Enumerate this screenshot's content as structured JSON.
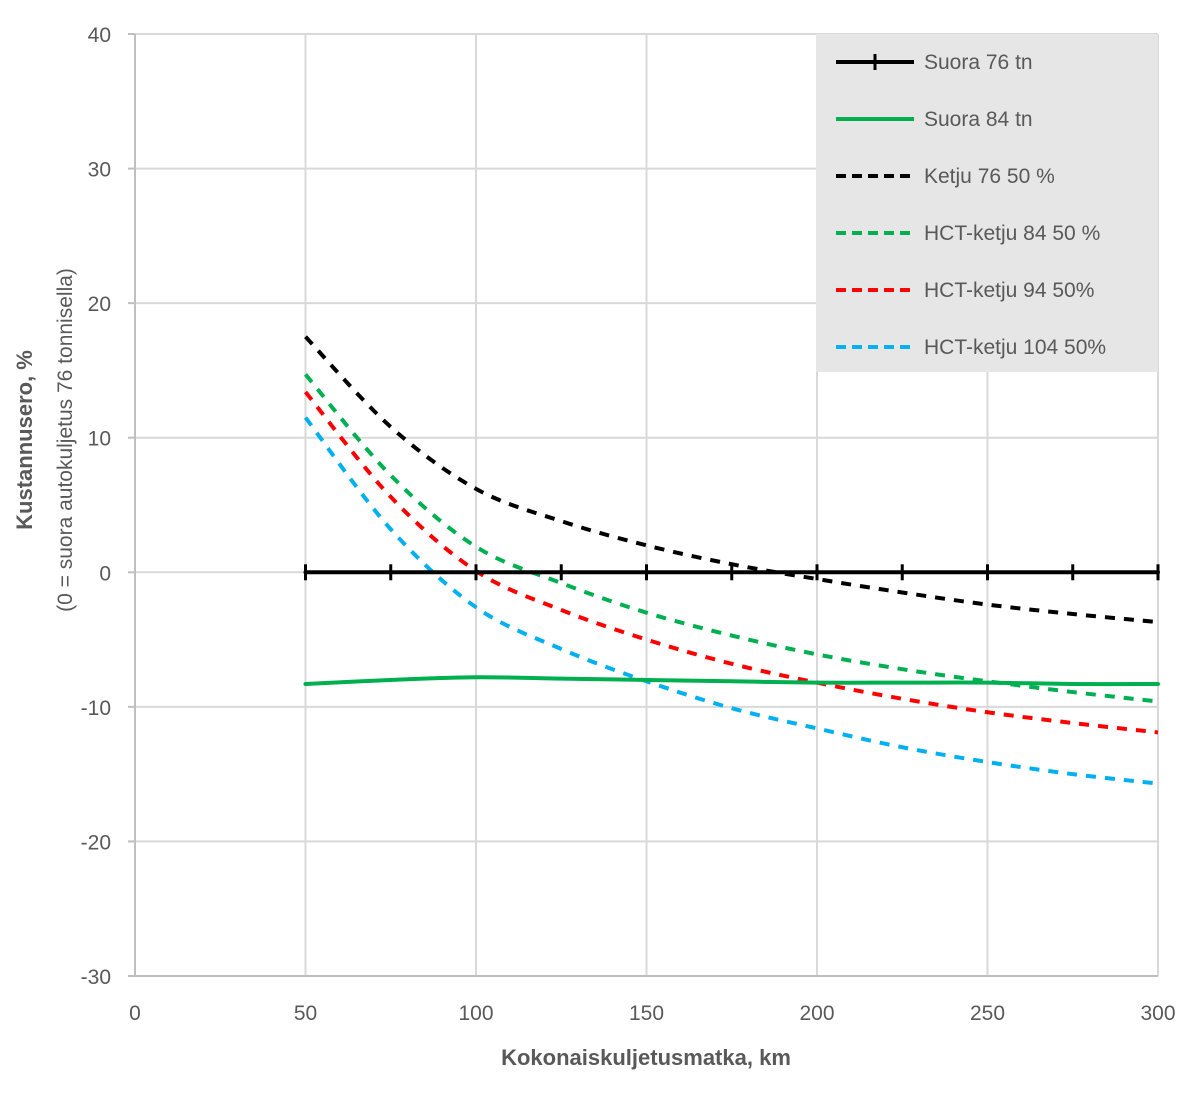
{
  "chart_data": {
    "type": "line",
    "title": "",
    "xlabel": "Kokonaiskuljetusmatka, km",
    "ylabel": "Kustannusero, %",
    "ylabel_sub": "(0 = suora autokuljetus 76 tonnisella)",
    "xlim": [
      0,
      300
    ],
    "ylim": [
      -30,
      40
    ],
    "xticks": [
      "0",
      "50",
      "100",
      "150",
      "200",
      "250",
      "300"
    ],
    "yticks": [
      "40",
      "30",
      "20",
      "10",
      "0",
      "-10",
      "-20",
      "-30"
    ],
    "xtick_values": [
      0,
      50,
      100,
      150,
      200,
      250,
      300
    ],
    "ytick_values": [
      40,
      30,
      20,
      10,
      0,
      -10,
      -20,
      -30
    ],
    "grid": true,
    "legend_position": "top-right",
    "x": [
      50,
      75,
      100,
      125,
      150,
      175,
      200,
      225,
      250,
      275,
      300
    ],
    "series": [
      {
        "name": "Suora 76 tn",
        "color": "#000000",
        "style": "solid-marker",
        "values": [
          0,
          0,
          0,
          0,
          0,
          0,
          0,
          0,
          0,
          0,
          0
        ]
      },
      {
        "name": "Suora 84 tn",
        "color": "#00B050",
        "style": "solid",
        "values": [
          -8.3,
          -8.0,
          -7.8,
          -7.9,
          -8.0,
          -8.1,
          -8.2,
          -8.2,
          -8.2,
          -8.3,
          -8.3
        ]
      },
      {
        "name": "Ketju 76 50 %",
        "color": "#000000",
        "style": "dashed",
        "values": [
          17.5,
          10.8,
          6.2,
          3.8,
          2.0,
          0.6,
          -0.5,
          -1.5,
          -2.4,
          -3.1,
          -3.7
        ]
      },
      {
        "name": "HCT-ketju 84 50 %",
        "color": "#00B050",
        "style": "dashed",
        "values": [
          14.7,
          7.2,
          1.9,
          -0.8,
          -3.0,
          -4.7,
          -6.1,
          -7.2,
          -8.1,
          -8.9,
          -9.6
        ]
      },
      {
        "name": "HCT-ketju 94 50%",
        "color": "#FF0000",
        "style": "dashed",
        "values": [
          13.4,
          5.6,
          0.1,
          -2.8,
          -5.0,
          -6.8,
          -8.2,
          -9.4,
          -10.4,
          -11.2,
          -11.9
        ]
      },
      {
        "name": "HCT-ketju 104 50%",
        "color": "#00B0F0",
        "style": "dashed",
        "values": [
          11.5,
          3.2,
          -2.6,
          -5.7,
          -8.1,
          -10.1,
          -11.6,
          -13.0,
          -14.1,
          -15.0,
          -15.7
        ]
      }
    ]
  }
}
